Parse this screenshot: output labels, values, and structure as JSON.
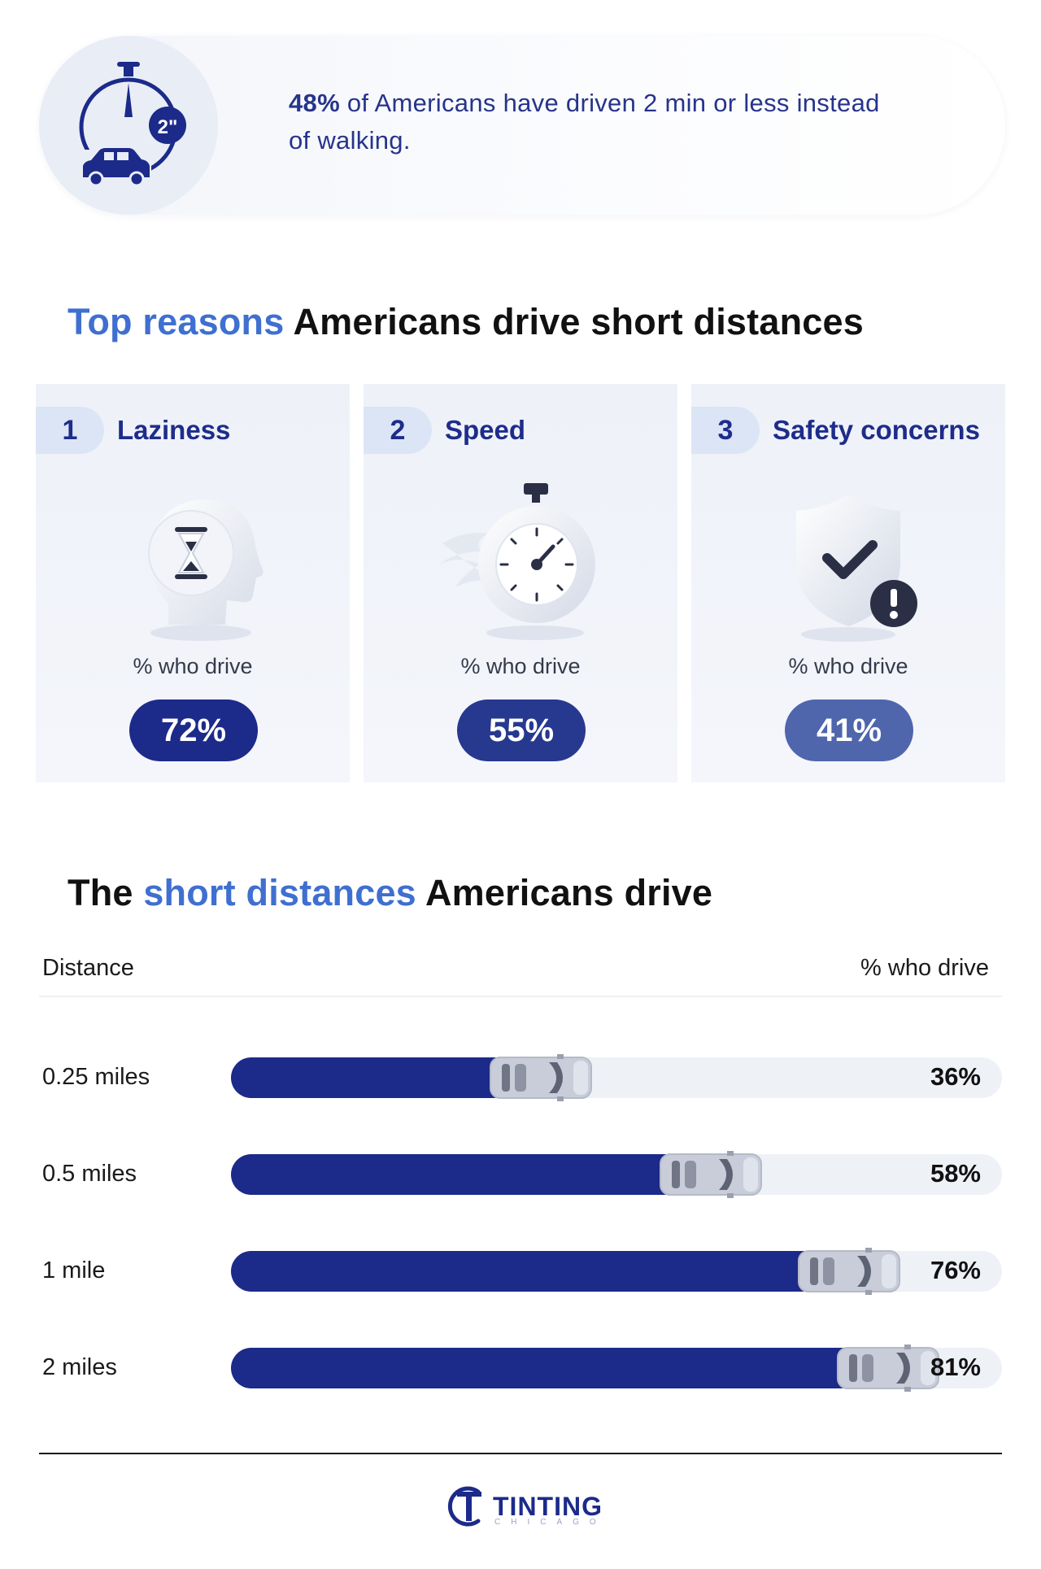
{
  "callout": {
    "stat": "48%",
    "text": " of Americans have driven 2 min or less instead of walking.",
    "timer_badge": "2\""
  },
  "reasons_title": {
    "accent": "Top reasons",
    "rest": " Americans drive short distances"
  },
  "reasons": [
    {
      "rank": "1",
      "name": "Laziness",
      "icon": "hourglass-head-icon",
      "who_label": "% who drive",
      "value": "72%",
      "pill_color": "#1c2a8a"
    },
    {
      "rank": "2",
      "name": "Speed",
      "icon": "stopwatch-icon",
      "who_label": "% who drive",
      "value": "55%",
      "pill_color": "#27388f"
    },
    {
      "rank": "3",
      "name": "Safety concerns",
      "icon": "shield-check-icon",
      "who_label": "% who drive",
      "value": "41%",
      "pill_color": "#4f66ad"
    }
  ],
  "distances_title": {
    "pre": "The ",
    "accent": "short distances",
    "rest": " Americans drive"
  },
  "chart_data": {
    "type": "bar",
    "orientation": "horizontal",
    "header_left": "Distance",
    "header_right": "% who drive",
    "categories": [
      "0.25 miles",
      "0.5 miles",
      "1 mile",
      "2 miles"
    ],
    "values": [
      36,
      58,
      76,
      81
    ],
    "labels": [
      "36%",
      "58%",
      "76%",
      "81%"
    ],
    "xlim": [
      0,
      100
    ],
    "bar_color": "#1c2a8a"
  },
  "footer": {
    "logo_text": "TINTING",
    "logo_sub": "CHICAGO"
  }
}
